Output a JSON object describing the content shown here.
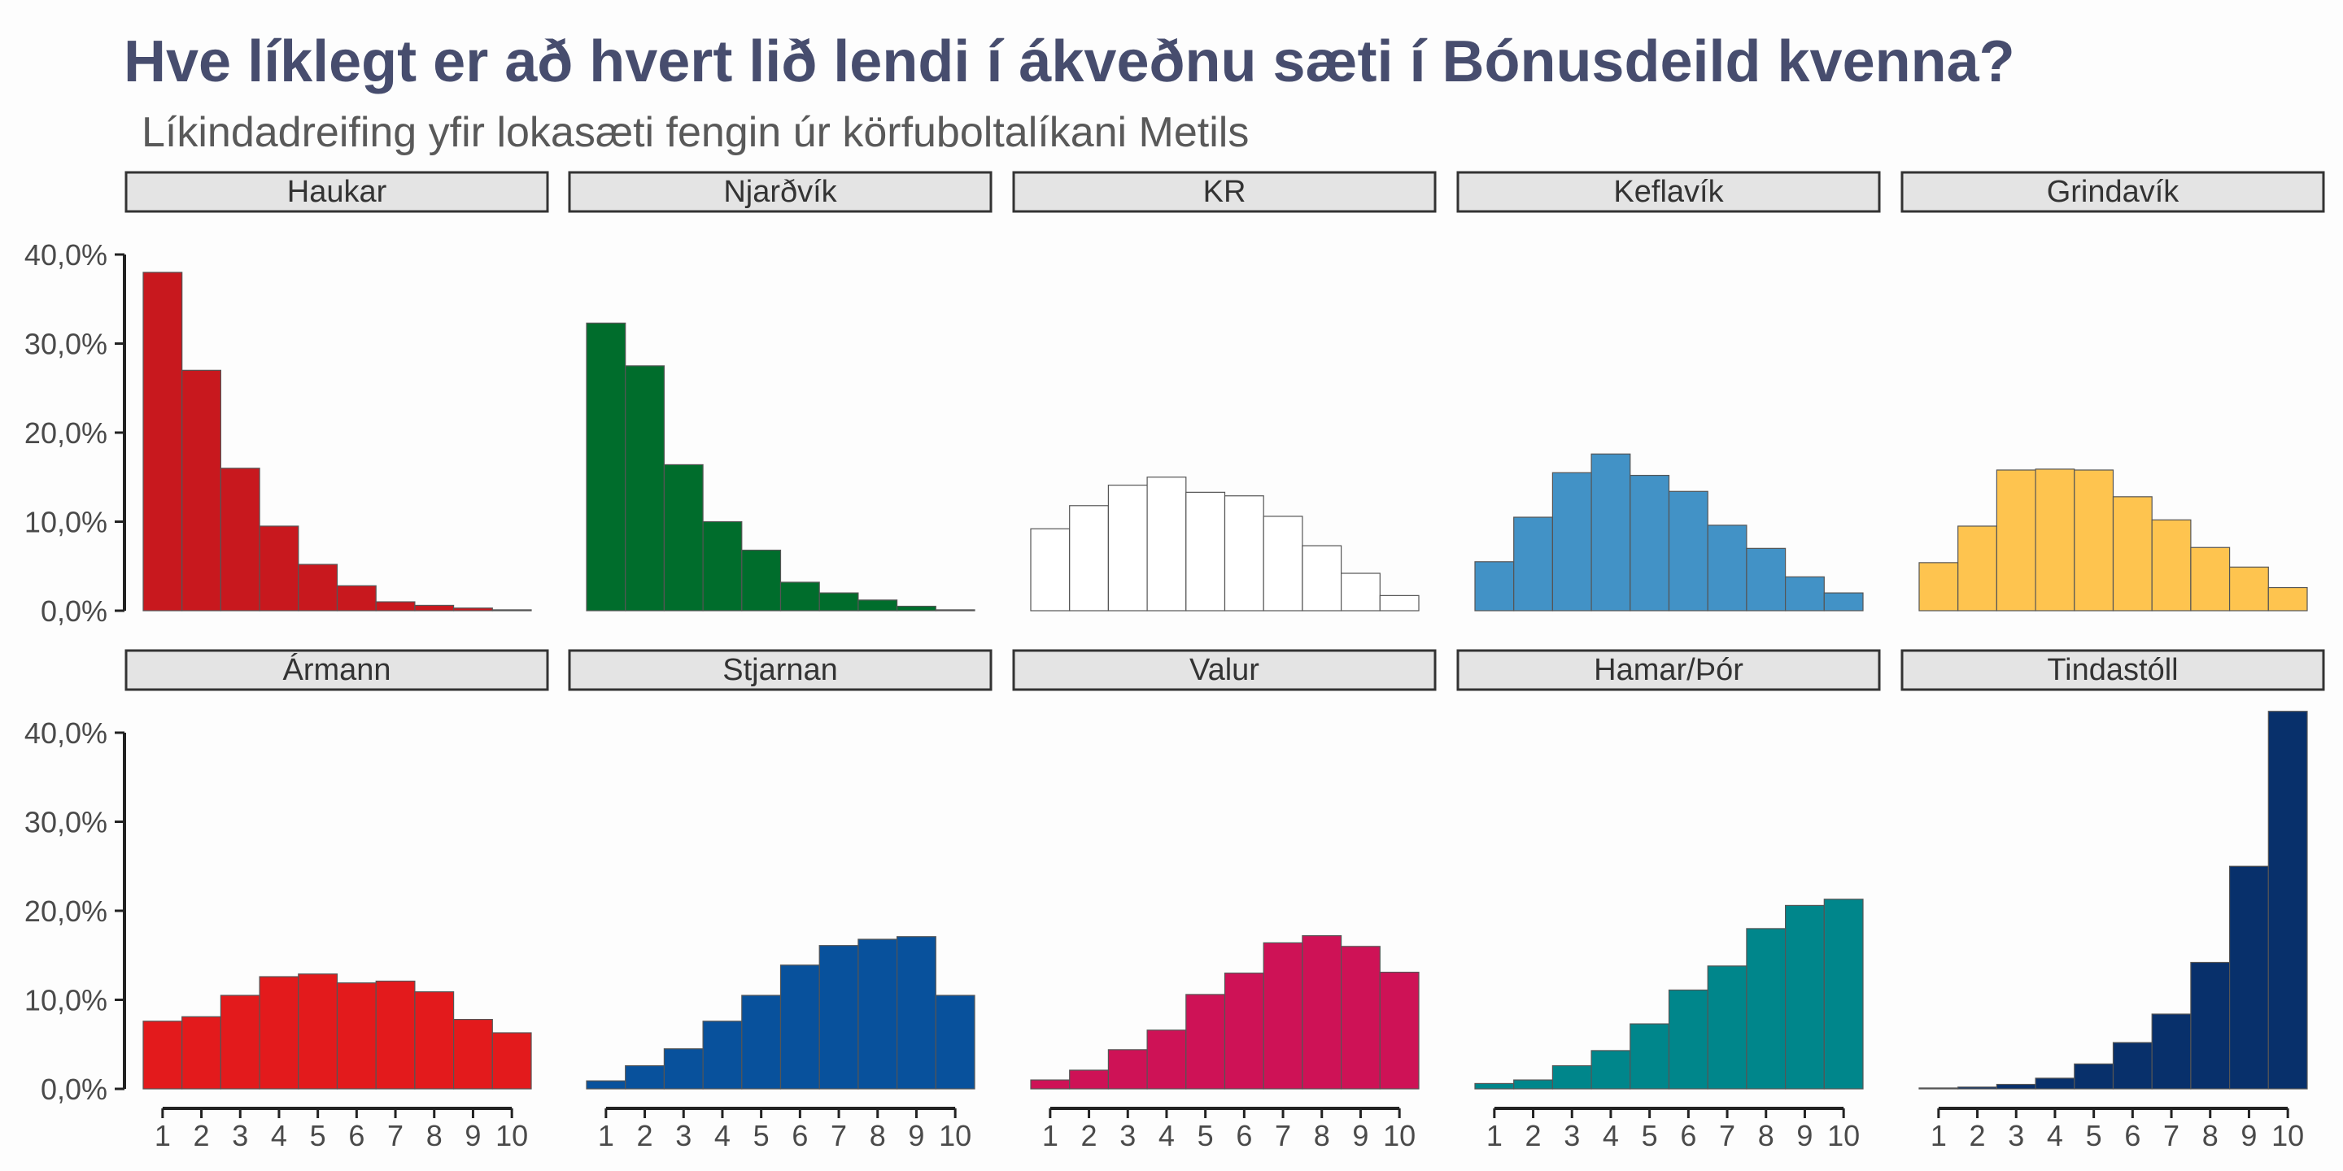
{
  "title": "Hve líklegt er að hvert lið lendi í ákveðnu sæti í Bónusdeild kvenna?",
  "subtitle": "Líkindadreifing yfir lokasæti fengin úr körfuboltalíkani Metils",
  "colors": {
    "title": "#474d6e",
    "subtitle": "#595959",
    "strip_fill": "#e4e4e4",
    "strip_border": "#333333",
    "axis": "#222222",
    "tick_text": "#4a4a4a",
    "bar_outline": "#555555"
  },
  "chart_data": {
    "type": "bar",
    "facet_layout": "2 rows x 5 columns, shared y axis",
    "x_ticks": [
      "1",
      "2",
      "3",
      "4",
      "5",
      "6",
      "7",
      "8",
      "9",
      "10"
    ],
    "y_ticks": [
      "0,0%",
      "10,0%",
      "20,0%",
      "30,0%",
      "40,0%"
    ],
    "ylim": [
      0,
      40
    ],
    "grid": false,
    "series": [
      {
        "name": "Haukar",
        "color": "#c8181e",
        "values": [
          38.0,
          27.0,
          16.0,
          9.5,
          5.2,
          2.8,
          1.0,
          0.6,
          0.3,
          0.1
        ]
      },
      {
        "name": "Njarðvík",
        "color": "#006d2c",
        "values": [
          32.3,
          27.5,
          16.4,
          10.0,
          6.8,
          3.2,
          2.0,
          1.2,
          0.5,
          0.1
        ]
      },
      {
        "name": "KR",
        "color": "#ffffff",
        "values": [
          9.2,
          11.8,
          14.1,
          15.0,
          13.3,
          12.9,
          10.6,
          7.3,
          4.2,
          1.7
        ]
      },
      {
        "name": "Keflavík",
        "color": "#4292c6",
        "values": [
          5.5,
          10.5,
          15.5,
          17.6,
          15.2,
          13.4,
          9.6,
          7.0,
          3.8,
          2.0
        ]
      },
      {
        "name": "Grindavík",
        "color": "#fec44f",
        "values": [
          5.4,
          9.5,
          15.8,
          15.9,
          15.8,
          12.8,
          10.2,
          7.1,
          4.9,
          2.6
        ]
      },
      {
        "name": "Ármann",
        "color": "#e31a1c",
        "values": [
          7.6,
          8.1,
          10.5,
          12.6,
          12.9,
          11.9,
          12.1,
          10.9,
          7.8,
          6.3
        ]
      },
      {
        "name": "Stjarnan",
        "color": "#08519c",
        "values": [
          0.9,
          2.6,
          4.5,
          7.6,
          10.5,
          13.9,
          16.1,
          16.8,
          17.1,
          10.5
        ]
      },
      {
        "name": "Valur",
        "color": "#ce1256",
        "values": [
          1.0,
          2.1,
          4.4,
          6.6,
          10.6,
          13.0,
          16.4,
          17.2,
          16.0,
          13.1
        ]
      },
      {
        "name": "Hamar/Þór",
        "color": "#00868b",
        "values": [
          0.6,
          1.0,
          2.6,
          4.3,
          7.3,
          11.1,
          13.8,
          18.0,
          20.6,
          21.3
        ]
      },
      {
        "name": "Tindastóll",
        "color": "#08306b",
        "values": [
          0.1,
          0.2,
          0.5,
          1.2,
          2.8,
          5.2,
          8.4,
          14.2,
          25.0,
          42.4
        ]
      }
    ]
  }
}
